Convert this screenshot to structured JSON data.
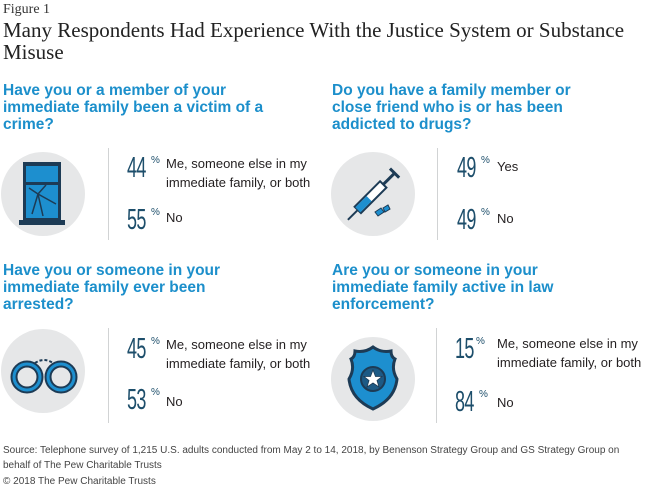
{
  "figure_label": "Figure 1",
  "title": "Many Respondents Had Experience With the Justice System or Substance Misuse",
  "panels": [
    {
      "question": "Have you or a member of your immediate family been a victim of a crime?",
      "icon": "broken-window-icon",
      "answers": [
        {
          "value": "44",
          "unit": "%",
          "label": "Me, someone else in my immediate family, or both"
        },
        {
          "value": "55",
          "unit": "%",
          "label": "No"
        }
      ]
    },
    {
      "question": "Do you have a family member or close friend who is or has been addicted to drugs?",
      "icon": "syringe-icon",
      "answers": [
        {
          "value": "49",
          "unit": "%",
          "label": "Yes"
        },
        {
          "value": "49",
          "unit": "%",
          "label": "No"
        }
      ]
    },
    {
      "question": "Have you or someone in your immediate family ever been arrested?",
      "icon": "handcuffs-icon",
      "answers": [
        {
          "value": "45",
          "unit": "%",
          "label": "Me, someone else in my immediate family, or both"
        },
        {
          "value": "53",
          "unit": "%",
          "label": "No"
        }
      ]
    },
    {
      "question": "Are you or someone in your immediate family active in law enforcement?",
      "icon": "police-badge-icon",
      "answers": [
        {
          "value": "15",
          "unit": "%",
          "label": "Me, someone else in my immediate family, or both"
        },
        {
          "value": "84",
          "unit": "%",
          "label": "No"
        }
      ]
    }
  ],
  "source": "Source: Telephone survey of 1,215 U.S. adults conducted from May 2 to 14, 2018, by Benenson Strategy Group and GS Strategy Group on behalf of The Pew Charitable Trusts",
  "copyright": "© 2018 The Pew Charitable Trusts",
  "colors": {
    "question": "#1c8fcb",
    "number": "#1d4e6b",
    "icon_bg": "#e6e7e8",
    "icon_blue": "#1d8fcf",
    "icon_dark": "#1d3b55"
  }
}
